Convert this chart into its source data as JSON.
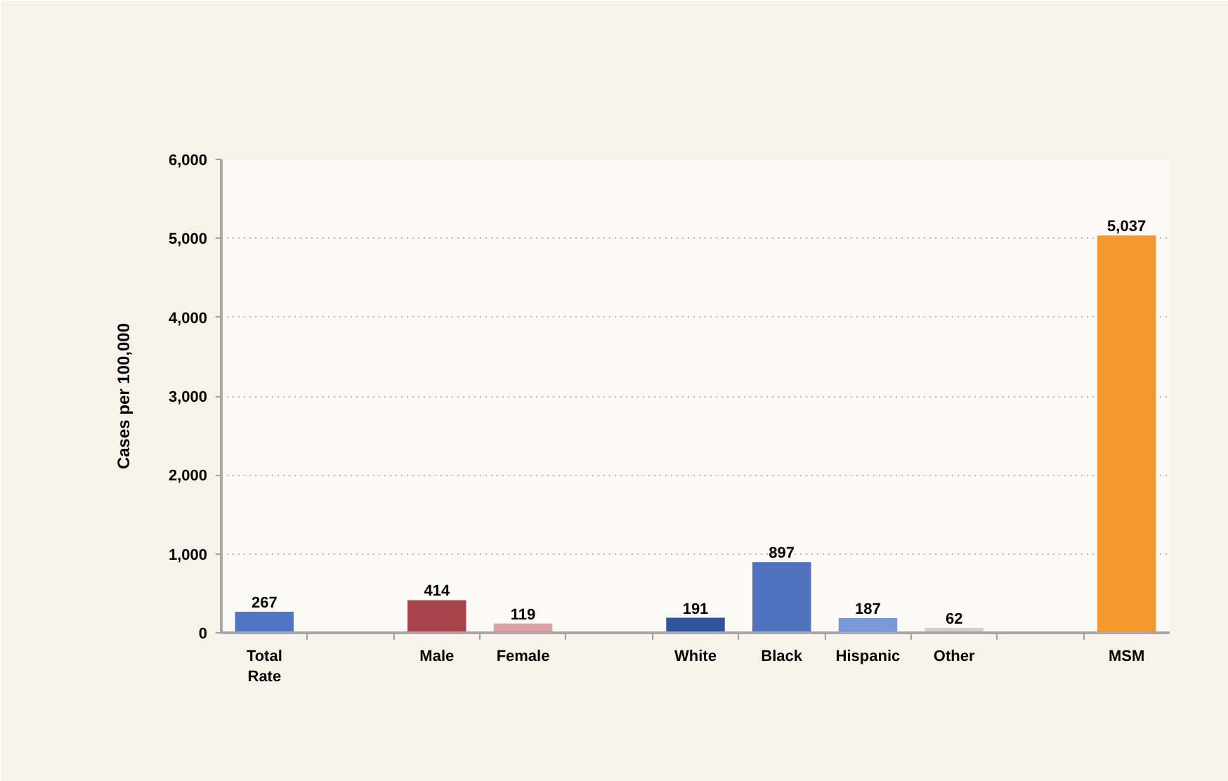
{
  "chart_data": {
    "type": "bar",
    "categories": [
      "Total Rate",
      null,
      "Male",
      "Female",
      null,
      "White",
      "Black",
      "Hispanic",
      "Other",
      null,
      "MSM"
    ],
    "values": [
      267,
      null,
      414,
      119,
      null,
      191,
      897,
      187,
      62,
      null,
      5037
    ],
    "colors": [
      "#5274c4",
      null,
      "#a8434c",
      "#d9a3a6",
      null,
      "#34539e",
      "#5272c0",
      "#7898d6",
      "#d8cccc",
      null,
      "#f7982e"
    ],
    "value_labels": [
      "267",
      null,
      "414",
      "119",
      null,
      "191",
      "897",
      "187",
      "62",
      null,
      "5,037"
    ],
    "ylabel": "Cases per 100,000",
    "ylim": [
      0,
      6000
    ],
    "yticks": [
      0,
      {
        "value": 1000,
        "label": "1,000"
      },
      {
        "value": 2000,
        "label": "2,000"
      },
      {
        "value": 3000,
        "label": "3,000"
      },
      {
        "value": 4000,
        "label": "4,000"
      },
      {
        "value": 5000,
        "label": "5,000"
      },
      {
        "value": 6000,
        "label": "6,000"
      }
    ],
    "grid": "y"
  }
}
